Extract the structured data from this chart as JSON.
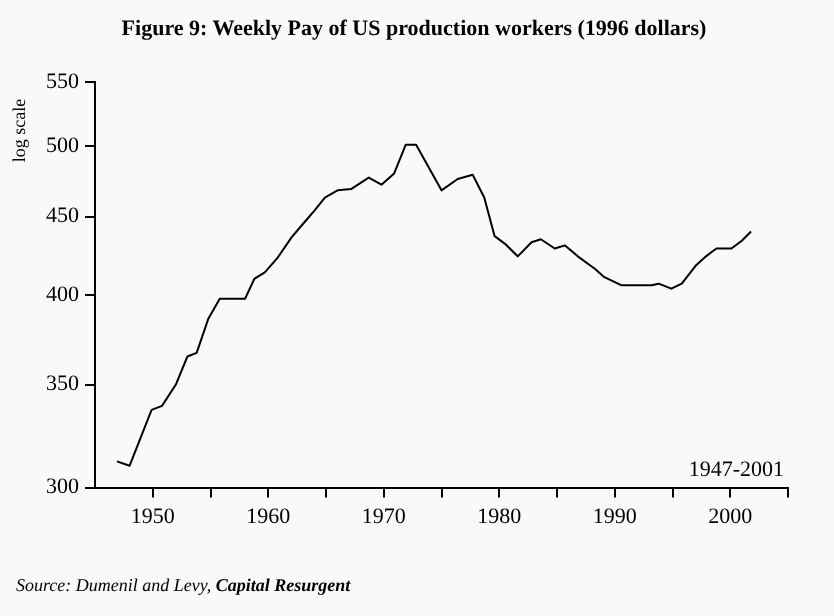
{
  "chart_data": {
    "type": "line",
    "title": "Figure 9: Weekly Pay of US production workers (1996 dollars)",
    "ylabel": "log scale",
    "annotations": [
      "1947-2001",
      "Source: Dumenil and Levy, Capital Resurgent"
    ],
    "x": [
      1946.9,
      1948.0,
      1949.9,
      1950.8,
      1952.0,
      1953.0,
      1953.8,
      1954.8,
      1955.8,
      1958.0,
      1958.8,
      1959.7,
      1960.8,
      1962.0,
      1963.0,
      1964.0,
      1964.9,
      1966.0,
      1967.2,
      1968.7,
      1969.8,
      1970.9,
      1971.9,
      1972.8,
      1975.0,
      1976.4,
      1977.7,
      1978.7,
      1979.6,
      1980.5,
      1981.6,
      1982.8,
      1983.6,
      1984.8,
      1985.7,
      1986.8,
      1988.3,
      1989.1,
      1990.6,
      1993.2,
      1993.8,
      1994.9,
      1995.8,
      1997.0,
      1997.9,
      1998.8,
      2000.1,
      2001.0,
      2001.8
    ],
    "series": [
      {
        "color": "#000000",
        "values": [
          312,
          310,
          337,
          339,
          350,
          365,
          367,
          386,
          398,
          398,
          410,
          414,
          423,
          436,
          445,
          454,
          463,
          468,
          469,
          477,
          472,
          480,
          501,
          501,
          468,
          476,
          479,
          463,
          437,
          432,
          424,
          433,
          435,
          429,
          431,
          424,
          416,
          411,
          406,
          406,
          407,
          404,
          407,
          418,
          424,
          429,
          429,
          434,
          440
        ]
      }
    ],
    "log": true,
    "xlim": [
      1945,
      2005
    ],
    "xticks": [
      1950,
      {
        "value": 1955,
        "label": null
      },
      1960,
      {
        "value": 1965,
        "label": null
      },
      1970,
      {
        "value": 1975,
        "label": null
      },
      1980,
      {
        "value": 1985,
        "label": null
      },
      1990,
      {
        "value": 1995,
        "label": null
      },
      2000,
      {
        "value": 2005,
        "label": null
      }
    ],
    "ylim": [
      300,
      550
    ],
    "yticks": [
      300,
      350,
      400,
      450,
      500,
      550
    ],
    "grid": false,
    "legend": false,
    "marker": "none",
    "line_style": "solid"
  }
}
